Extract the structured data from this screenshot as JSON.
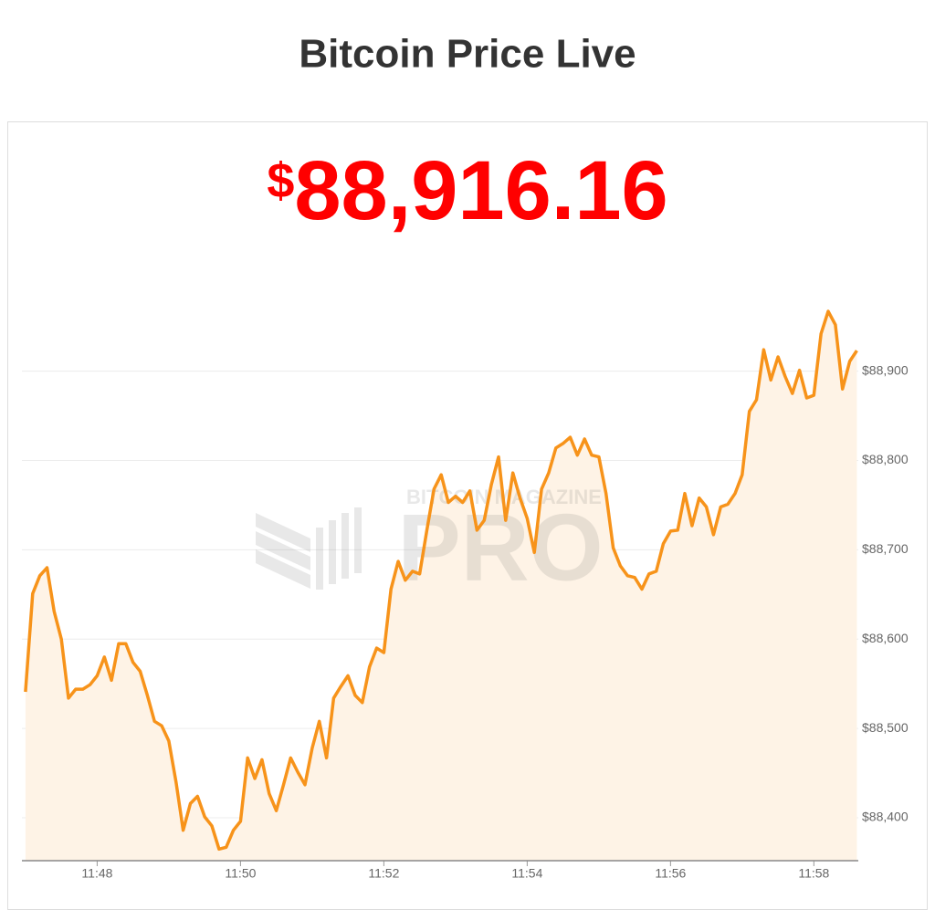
{
  "chart_data": {
    "type": "line",
    "title": "Bitcoin Price Live",
    "current_price": {
      "symbol": "$",
      "amount": "88,916.16"
    },
    "watermark": {
      "top": "BITCOIN MAGAZINE",
      "main": "PRO"
    },
    "color": "#f7931a",
    "fill_color": "#fef3e6",
    "grid": true,
    "x": [
      707.0,
      707.1,
      707.2,
      707.3,
      707.4,
      707.5,
      707.6,
      707.7,
      707.8,
      707.9,
      708.0,
      708.1,
      708.2,
      708.3,
      708.4,
      708.5,
      708.6,
      708.7,
      708.8,
      708.9,
      709.0,
      709.1,
      709.2,
      709.3,
      709.4,
      709.5,
      709.6,
      709.7,
      709.8,
      709.9,
      710.0,
      710.1,
      710.2,
      710.3,
      710.4,
      710.5,
      710.6,
      710.7,
      710.8,
      710.9,
      711.0,
      711.1,
      711.2,
      711.3,
      711.4,
      711.5,
      711.6,
      711.7,
      711.8,
      711.9,
      712.0,
      712.1,
      712.2,
      712.3,
      712.4,
      712.5,
      712.6,
      712.7,
      712.8,
      712.9,
      713.0,
      713.1,
      713.2,
      713.3,
      713.4,
      713.5,
      713.6,
      713.7,
      713.8,
      713.9,
      714.0,
      714.1,
      714.2,
      714.3,
      714.4,
      714.5,
      714.6,
      714.7,
      714.8,
      714.9,
      715.0,
      715.1,
      715.2,
      715.3,
      715.4,
      715.5,
      715.6,
      715.7,
      715.8,
      715.9,
      716.0,
      716.1,
      716.2,
      716.3,
      716.4,
      716.5,
      716.6,
      716.7,
      716.8,
      716.9,
      717.0,
      717.1,
      717.2,
      717.3,
      717.4,
      717.5,
      717.6,
      717.7,
      717.8,
      717.9,
      718.0,
      718.1,
      718.2,
      718.3,
      718.4,
      718.5,
      718.6
    ],
    "values": [
      88541,
      88651,
      88671,
      88680,
      88631,
      88600,
      88534,
      88544,
      88544,
      88549,
      88559,
      88580,
      88554,
      88595,
      88595,
      88574,
      88564,
      88537,
      88508,
      88503,
      88486,
      88440,
      88386,
      88416,
      88424,
      88401,
      88391,
      88365,
      88367,
      88386,
      88396,
      88467,
      88444,
      88465,
      88427,
      88408,
      88437,
      88467,
      88451,
      88437,
      88478,
      88508,
      88467,
      88534,
      88547,
      88559,
      88537,
      88529,
      88569,
      88590,
      88585,
      88656,
      88687,
      88666,
      88676,
      88673,
      88722,
      88768,
      88784,
      88753,
      88760,
      88753,
      88766,
      88722,
      88733,
      88773,
      88804,
      88733,
      88786,
      88758,
      88735,
      88697,
      88768,
      88786,
      88814,
      88819,
      88826,
      88806,
      88824,
      88806,
      88804,
      88763,
      88702,
      88682,
      88671,
      88669,
      88656,
      88673,
      88676,
      88707,
      88721,
      88722,
      88763,
      88727,
      88758,
      88748,
      88717,
      88748,
      88751,
      88763,
      88784,
      88855,
      88868,
      88924,
      88890,
      88916,
      88894,
      88875,
      88901,
      88870,
      88873,
      88942,
      88967,
      88952,
      88880,
      88911,
      88923
    ],
    "xlim": [
      706.95,
      718.62
    ],
    "xticks": [
      {
        "value": 708,
        "label": "11:48"
      },
      {
        "value": 710,
        "label": "11:50"
      },
      {
        "value": 712,
        "label": "11:52"
      },
      {
        "value": 714,
        "label": "11:54"
      },
      {
        "value": 716,
        "label": "11:56"
      },
      {
        "value": 718,
        "label": "11:58"
      }
    ],
    "ylim": [
      88352,
      89010
    ],
    "yticks": [
      {
        "value": 88400,
        "label": "$88,400"
      },
      {
        "value": 88500,
        "label": "$88,500"
      },
      {
        "value": 88600,
        "label": "$88,600"
      },
      {
        "value": 88700,
        "label": "$88,700"
      },
      {
        "value": 88800,
        "label": "$88,800"
      },
      {
        "value": 88900,
        "label": "$88,900"
      }
    ]
  }
}
